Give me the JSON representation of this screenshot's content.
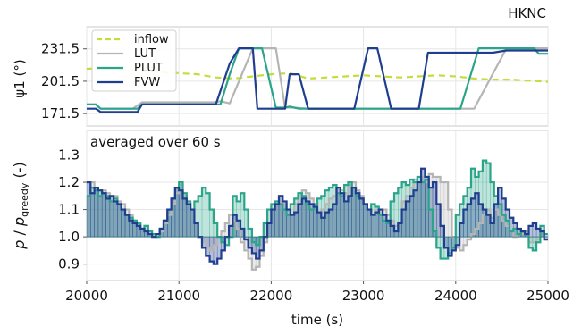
{
  "chart_data": [
    {
      "type": "line",
      "corner_label": "HKNC",
      "xlabel": "",
      "ylabel": "ψ1 (°)",
      "xlim": [
        20000,
        25000
      ],
      "ylim": [
        160,
        252
      ],
      "yticks": [
        171.5,
        201.5,
        231.5
      ],
      "ytick_labels": [
        "171.5",
        "201.5",
        "231.5"
      ],
      "grid": true,
      "legend_position": "upper-left",
      "series": [
        {
          "name": "inflow",
          "color": "#c5dc3a",
          "dash": true,
          "x": [
            20000,
            20200,
            20400,
            20600,
            20800,
            21000,
            21200,
            21400,
            21600,
            21800,
            22000,
            22200,
            22400,
            22600,
            22800,
            23000,
            23200,
            23400,
            23600,
            23800,
            24000,
            24200,
            24400,
            24600,
            24800,
            25000
          ],
          "y": [
            213,
            214,
            212,
            211,
            210,
            209,
            208,
            205,
            204,
            206,
            208,
            209,
            204,
            205,
            206,
            207,
            206,
            205,
            206,
            207,
            206,
            204,
            203,
            203,
            202,
            201
          ]
        },
        {
          "name": "LUT",
          "color": "#b5b5b5",
          "dash": false,
          "x": [
            20000,
            20100,
            20150,
            20500,
            20600,
            21380,
            21450,
            21550,
            21800,
            22050,
            22150,
            22250,
            22400,
            23200,
            24200,
            24550,
            25000
          ],
          "y": [
            180,
            180,
            176,
            176,
            182,
            182,
            183,
            181,
            232,
            232,
            177,
            177,
            176,
            176,
            176,
            232,
            232
          ]
        },
        {
          "name": "PLUT",
          "color": "#2aa58a",
          "dash": false,
          "x": [
            20000,
            20100,
            20150,
            20550,
            20600,
            21450,
            21550,
            21650,
            21900,
            22050,
            22150,
            22200,
            22300,
            23200,
            24050,
            24250,
            24850,
            24900,
            25000
          ],
          "y": [
            180,
            180,
            176,
            176,
            180,
            180,
            208,
            232,
            232,
            177,
            177,
            178,
            176,
            176,
            176,
            232,
            232,
            227,
            227
          ]
        },
        {
          "name": "FVW",
          "color": "#1f3e8f",
          "dash": false,
          "x": [
            20000,
            20100,
            20150,
            20550,
            20600,
            21400,
            21550,
            21650,
            21800,
            21850,
            22050,
            22150,
            22200,
            22300,
            22400,
            22900,
            23050,
            23150,
            23300,
            23600,
            23700,
            24400,
            24550,
            25000
          ],
          "y": [
            176,
            176,
            173,
            173,
            180,
            180,
            218,
            232,
            232,
            176,
            176,
            176,
            208,
            208,
            176,
            176,
            232,
            232,
            176,
            176,
            228,
            228,
            230,
            230
          ]
        }
      ]
    },
    {
      "type": "line",
      "annotation": "averaged over 60 s",
      "xlabel": "time (s)",
      "ylabel": "p / p_greedy (-)",
      "xlim": [
        20000,
        25000
      ],
      "ylim": [
        0.84,
        1.39
      ],
      "xticks": [
        20000,
        21000,
        22000,
        23000,
        24000,
        25000
      ],
      "xtick_labels": [
        "20000",
        "21000",
        "22000",
        "23000",
        "24000",
        "25000"
      ],
      "yticks": [
        0.9,
        1.0,
        1.1,
        1.2,
        1.3
      ],
      "ytick_labels": [
        "0.9",
        "1.0",
        "1.1",
        "1.2",
        "1.3"
      ],
      "baseline": 1.0,
      "grid": true,
      "series": [
        {
          "name": "LUT",
          "color": "#b5b5b5",
          "values": [
            1.15,
            1.2,
            1.18,
            1.15,
            1.17,
            1.16,
            1.14,
            1.15,
            1.13,
            1.12,
            1.1,
            1.08,
            1.06,
            1.05,
            1.03,
            1.04,
            1.02,
            1.01,
            1.0,
            1.02,
            1.05,
            1.08,
            1.12,
            1.16,
            1.19,
            1.15,
            1.12,
            1.1,
            1.05,
            1.0,
            0.98,
            0.96,
            0.95,
            0.97,
            1.0,
            1.02,
            1.05,
            1.08,
            1.06,
            1.03,
            0.98,
            0.95,
            0.92,
            0.88,
            0.89,
            0.93,
            0.98,
            1.05,
            1.1,
            1.13,
            1.15,
            1.12,
            1.1,
            1.08,
            1.12,
            1.15,
            1.17,
            1.16,
            1.14,
            1.12,
            1.09,
            1.1,
            1.12,
            1.14,
            1.15,
            1.18,
            1.17,
            1.16,
            1.19,
            1.2,
            1.17,
            1.15,
            1.12,
            1.1,
            1.08,
            1.1,
            1.09,
            1.1,
            1.08,
            1.06,
            1.04,
            1.05,
            1.13,
            1.15,
            1.18,
            1.21,
            1.2,
            1.22,
            1.2,
            1.23,
            1.22,
            1.22,
            1.2,
            1.2,
            1.1,
            1.0,
            0.96,
            0.95,
            0.97,
            0.99,
            1.01,
            1.03,
            1.05,
            1.08,
            1.1,
            1.07,
            1.1,
            1.08,
            1.06,
            1.04,
            1.02,
            1.0,
            1.02,
            1.01,
            1.02,
            0.98,
            0.98,
            0.99,
            1.02,
            1.0
          ]
        },
        {
          "name": "PLUT",
          "color": "#2aa58a",
          "values": [
            1.15,
            1.18,
            1.17,
            1.15,
            1.16,
            1.15,
            1.13,
            1.14,
            1.12,
            1.1,
            1.08,
            1.07,
            1.06,
            1.05,
            1.03,
            1.04,
            1.02,
            1.01,
            1.0,
            1.03,
            1.06,
            1.1,
            1.14,
            1.18,
            1.2,
            1.16,
            1.13,
            1.1,
            1.13,
            1.15,
            1.18,
            1.16,
            1.1,
            1.05,
            1.0,
            0.98,
            0.97,
            1.0,
            1.15,
            1.13,
            1.16,
            1.1,
            1.03,
            0.98,
            0.97,
            1.0,
            1.05,
            1.1,
            1.12,
            1.13,
            1.12,
            1.1,
            1.08,
            1.12,
            1.14,
            1.16,
            1.15,
            1.12,
            1.1,
            1.12,
            1.14,
            1.15,
            1.17,
            1.18,
            1.19,
            1.16,
            1.15,
            1.19,
            1.2,
            1.18,
            1.15,
            1.14,
            1.12,
            1.1,
            1.12,
            1.11,
            1.08,
            1.06,
            1.05,
            1.13,
            1.16,
            1.18,
            1.2,
            1.19,
            1.21,
            1.2,
            1.22,
            1.2,
            1.21,
            1.1,
            1.02,
            0.96,
            0.92,
            0.92,
            0.94,
            0.96,
            1.08,
            1.12,
            1.15,
            1.18,
            1.25,
            1.22,
            1.24,
            1.28,
            1.27,
            1.2,
            1.15,
            1.12,
            1.08,
            1.06,
            1.02,
            1.03,
            1.01,
            1.02,
            1.01,
            0.96,
            0.95,
            0.98,
            1.04,
            1.01
          ]
        },
        {
          "name": "FVW",
          "color": "#1f3e8f",
          "values": [
            1.2,
            1.16,
            1.18,
            1.17,
            1.16,
            1.14,
            1.15,
            1.13,
            1.12,
            1.1,
            1.08,
            1.06,
            1.05,
            1.04,
            1.03,
            1.02,
            1.01,
            1.0,
            1.01,
            1.03,
            1.06,
            1.1,
            1.14,
            1.18,
            1.17,
            1.14,
            1.12,
            1.1,
            1.05,
            1.0,
            0.96,
            0.93,
            0.91,
            0.9,
            0.92,
            0.95,
            1.0,
            1.04,
            1.08,
            1.06,
            1.03,
            0.99,
            0.96,
            0.94,
            0.92,
            0.95,
            1.0,
            1.05,
            1.1,
            1.12,
            1.15,
            1.13,
            1.1,
            1.08,
            1.09,
            1.12,
            1.14,
            1.13,
            1.12,
            1.11,
            1.09,
            1.07,
            1.09,
            1.1,
            1.12,
            1.18,
            1.16,
            1.13,
            1.15,
            1.18,
            1.16,
            1.14,
            1.12,
            1.1,
            1.08,
            1.09,
            1.1,
            1.08,
            1.06,
            1.04,
            1.02,
            1.05,
            1.1,
            1.13,
            1.15,
            1.17,
            1.2,
            1.25,
            1.22,
            1.18,
            1.2,
            1.12,
            1.04,
            0.96,
            0.93,
            0.95,
            0.97,
            1.05,
            1.1,
            1.12,
            1.14,
            1.16,
            1.12,
            1.1,
            1.08,
            1.05,
            1.12,
            1.18,
            1.14,
            1.1,
            1.07,
            1.05,
            1.03,
            1.02,
            1.01,
            1.04,
            1.05,
            1.03,
            1.02,
            0.99
          ]
        }
      ]
    }
  ]
}
